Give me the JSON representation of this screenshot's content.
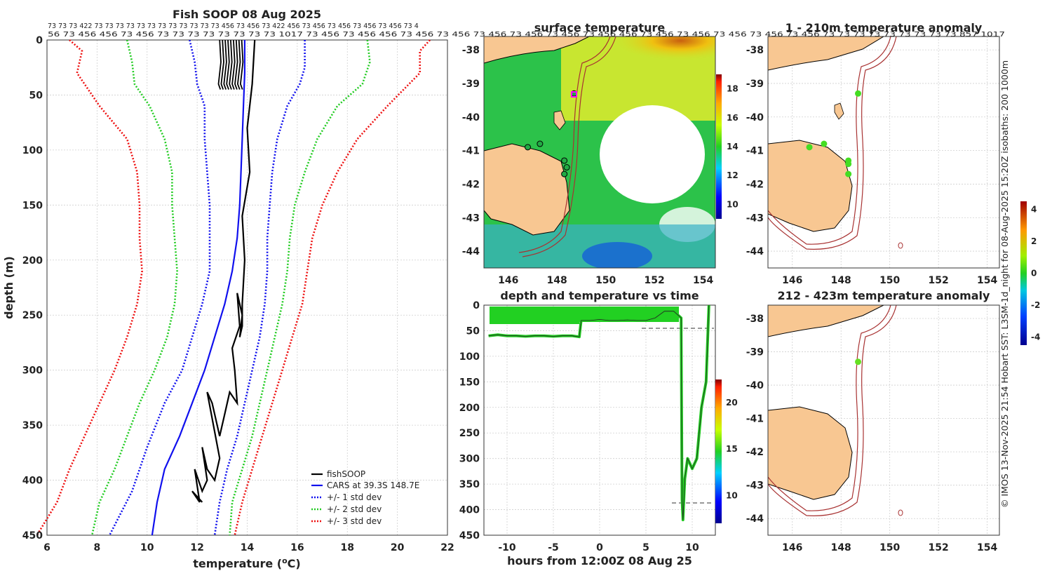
{
  "chart_data": [
    {
      "type": "line",
      "title": "Fish SOOP 08 Aug 2025",
      "xlabel": "temperature (°C)",
      "xlabel_main": "temperature (",
      "xlabel_deg": "o",
      "xlabel_unit": "C)",
      "ylabel": "depth (m)",
      "xlim": [
        6,
        22
      ],
      "ylim": [
        450,
        0
      ],
      "xticks": [
        "6",
        "8",
        "10",
        "12",
        "14",
        "16",
        "18",
        "20",
        "22"
      ],
      "yticks": [
        "0",
        "50",
        "100",
        "150",
        "200",
        "250",
        "300",
        "350",
        "400",
        "450"
      ],
      "top_header_row1": "73 73 73 422 73 73 73 73 73 73 73 73 73 73 73 73 456 73 456 73 422 456 73 456 73 456 73 456 73 456 73 4",
      "top_header_row2": "56 73 456 456 73 456 73 73 73 73 73 73 73 73 1017 73 456 73 456 456 73 456 73 456 73 456 73 456 73 456 73 456 456 73 456 73 456 73 456 73 456 73 456 73 73 73 73 73 73 73 73 73 857 1017",
      "legend": [
        "fishSOOP",
        "CARS at 39.3S 148.7E",
        "+/- 1 std dev",
        "+/- 2 std dev",
        "+/- 3 std dev"
      ],
      "series": [
        {
          "name": "CARS at 39.3S 148.7E",
          "color": "#1010ee",
          "style": "solid",
          "x": [
            13.9,
            13.9,
            13.85,
            13.8,
            13.75,
            13.7,
            13.6,
            13.4,
            13.1,
            12.7,
            12.3,
            11.8,
            11.3,
            10.7,
            10.4,
            10.2
          ],
          "y": [
            0,
            30,
            60,
            90,
            120,
            150,
            180,
            210,
            240,
            270,
            300,
            330,
            360,
            390,
            420,
            450
          ]
        },
        {
          "name": "+/- 1 std dev (left)",
          "color": "#1010ee",
          "style": "dot",
          "x": [
            11.7,
            11.9,
            12.0,
            12.3,
            12.3,
            12.4,
            12.5,
            12.5,
            12.5,
            12.2,
            11.8,
            11.4,
            10.7,
            10.0,
            9.4,
            8.5
          ],
          "y": [
            0,
            20,
            40,
            60,
            90,
            120,
            150,
            180,
            210,
            240,
            270,
            300,
            330,
            370,
            410,
            450
          ]
        },
        {
          "name": "+/- 1 std dev (right)",
          "color": "#1010ee",
          "style": "dot",
          "x": [
            16.3,
            16.3,
            16.1,
            15.6,
            15.2,
            15.0,
            14.9,
            14.8,
            14.8,
            14.7,
            14.5,
            14.2,
            13.9,
            13.6,
            13.2,
            12.9,
            12.7
          ],
          "y": [
            0,
            25,
            40,
            60,
            90,
            120,
            150,
            180,
            210,
            240,
            270,
            300,
            330,
            360,
            390,
            420,
            450
          ]
        },
        {
          "name": "+/- 2 std dev (left)",
          "color": "#22cc22",
          "style": "dot",
          "x": [
            9.2,
            9.4,
            9.5,
            10.1,
            10.7,
            11.0,
            11.0,
            11.1,
            11.2,
            11.1,
            10.8,
            10.3,
            9.7,
            9.2,
            8.7,
            8.1,
            7.8
          ],
          "y": [
            0,
            20,
            40,
            60,
            90,
            120,
            150,
            180,
            210,
            240,
            270,
            300,
            330,
            360,
            390,
            420,
            450
          ]
        },
        {
          "name": "+/- 2 std dev (right)",
          "color": "#22cc22",
          "style": "dot",
          "x": [
            18.8,
            18.9,
            18.6,
            17.6,
            16.8,
            16.3,
            15.9,
            15.7,
            15.6,
            15.4,
            15.1,
            14.8,
            14.5,
            14.2,
            13.8,
            13.4,
            13.3
          ],
          "y": [
            0,
            20,
            40,
            60,
            90,
            120,
            150,
            180,
            210,
            240,
            270,
            300,
            330,
            360,
            390,
            420,
            450
          ]
        },
        {
          "name": "+/- 3 std dev (left)",
          "color": "#ee1111",
          "style": "dot",
          "x": [
            6.9,
            7.4,
            7.2,
            8.1,
            9.2,
            9.6,
            9.7,
            9.7,
            9.8,
            9.6,
            9.2,
            8.7,
            8.1,
            7.5,
            6.9,
            6.4,
            5.6
          ],
          "y": [
            0,
            10,
            30,
            60,
            90,
            120,
            150,
            180,
            210,
            240,
            270,
            300,
            330,
            360,
            390,
            420,
            450
          ]
        },
        {
          "name": "+/- 3 std dev (right)",
          "color": "#ee1111",
          "style": "dot",
          "x": [
            21.3,
            20.9,
            20.9,
            19.6,
            18.4,
            17.6,
            17.0,
            16.6,
            16.4,
            16.2,
            15.8,
            15.4,
            15.0,
            14.6,
            14.2,
            13.8,
            13.5
          ],
          "y": [
            0,
            10,
            30,
            60,
            90,
            120,
            150,
            180,
            210,
            240,
            270,
            300,
            330,
            360,
            390,
            420,
            450
          ]
        },
        {
          "name": "fishSOOP",
          "color": "#000000",
          "style": "solid",
          "x": [
            14.3,
            14.2,
            14.0,
            14.1,
            13.8,
            13.9,
            13.8,
            13.8,
            13.7,
            13.8,
            13.6,
            13.7,
            13.4,
            13.5,
            13.6,
            13.3,
            13.1,
            12.9,
            12.6,
            12.4,
            12.9,
            12.7,
            12.4,
            12.2,
            12.4,
            12.2,
            11.9,
            12.1,
            11.8,
            12.2
          ],
          "y": [
            0,
            40,
            80,
            120,
            160,
            200,
            240,
            260,
            270,
            250,
            230,
            260,
            280,
            300,
            330,
            320,
            340,
            360,
            330,
            320,
            380,
            400,
            390,
            370,
            400,
            410,
            390,
            420,
            410,
            420
          ]
        }
      ]
    },
    {
      "type": "heatmap",
      "title": "surface temperature",
      "xticks": [
        "146",
        "148",
        "150",
        "152",
        "154"
      ],
      "yticks": [
        "-38",
        "-39",
        "-40",
        "-41",
        "-42",
        "-43",
        "-44"
      ],
      "colorbar_ticks": [
        "10",
        "12",
        "14",
        "16",
        "18"
      ],
      "track_points": [
        [
          148.7,
          -39.3
        ],
        [
          146.8,
          -40.9
        ],
        [
          147.3,
          -40.8
        ],
        [
          148.3,
          -41.3
        ],
        [
          148.3,
          -41.7
        ],
        [
          148.4,
          -41.5
        ]
      ]
    },
    {
      "type": "scatter",
      "title": "depth and temperature vs time",
      "xlabel": "hours from 12:00Z 08 Aug 25",
      "xticks": [
        "-10",
        "-5",
        "0",
        "5",
        "10"
      ],
      "yticks": [
        "0",
        "50",
        "100",
        "150",
        "200",
        "250",
        "300",
        "350",
        "400",
        "450"
      ],
      "xlim": [
        -12.5,
        12.5
      ],
      "ylim": [
        450,
        0
      ],
      "colorbar_ticks": [
        "10",
        "15",
        "20"
      ],
      "depth_x": [
        -12,
        -11,
        -10,
        -9,
        -8,
        -7,
        -6,
        -5,
        -4,
        -3,
        -2.2,
        -2,
        -1,
        0,
        1,
        2,
        3,
        4,
        5,
        6,
        7,
        8,
        8.8,
        8.9,
        9.0,
        9.2,
        9.5,
        10,
        10.5,
        11,
        11.5,
        11.8
      ],
      "depth_y": [
        60,
        58,
        60,
        60,
        61,
        60,
        60,
        61,
        60,
        60,
        62,
        30,
        30,
        28,
        30,
        30,
        29,
        30,
        30,
        25,
        12,
        12,
        25,
        380,
        420,
        340,
        300,
        320,
        300,
        200,
        150,
        0
      ]
    },
    {
      "type": "scatter",
      "title": "1 - 210m temperature anomaly",
      "xticks": [
        "146",
        "148",
        "150",
        "152",
        "154"
      ],
      "yticks": [
        "-38",
        "-39",
        "-40",
        "-41",
        "-42",
        "-43",
        "-44"
      ],
      "colorbar_ticks": [
        "-4",
        "-2",
        "0",
        "2",
        "4"
      ],
      "points": [
        [
          148.7,
          -39.3
        ],
        [
          146.7,
          -40.9
        ],
        [
          147.3,
          -40.8
        ],
        [
          148.3,
          -41.3
        ],
        [
          148.3,
          -41.4
        ],
        [
          148.3,
          -41.7
        ]
      ]
    },
    {
      "type": "scatter",
      "title": "212 - 423m temperature anomaly",
      "xticks": [
        "146",
        "148",
        "150",
        "152",
        "154"
      ],
      "yticks": [
        "-38",
        "-39",
        "-40",
        "-41",
        "-42",
        "-43",
        "-44"
      ],
      "points": [
        [
          148.7,
          -39.3
        ]
      ]
    }
  ],
  "side_caption": "© IMOS 13-Nov-2025 21:54 Hobart SST: L3SM-1d_night for 08-Aug-2025 15:20Z isobaths: 200  1000m",
  "colors": {
    "land": "#f8c792",
    "isobath": "#a83232",
    "sst_cold": "#0000aa",
    "sst_warm": "#c80000"
  }
}
